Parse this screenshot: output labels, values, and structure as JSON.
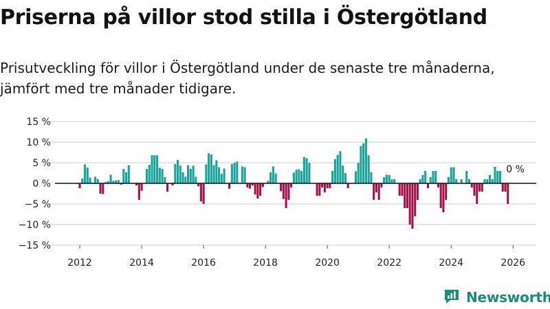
{
  "title": "Priserna på villor stod stilla i Östergötland",
  "subtitle": "Prisutveckling för villor i Östergötland under de senaste tre månaderna, jämfört med tre månader tidigare.",
  "brand": {
    "name": "Newsworthy",
    "icon": "newsworthy-logo-icon"
  },
  "colors": {
    "positive": "#1aa39a",
    "negative": "#a3134a",
    "grid": "#cccccc",
    "brand": "#1d8b7a"
  },
  "chart_data": {
    "type": "bar",
    "title": "Priserna på villor stod stilla i Östergötland",
    "xlabel": "",
    "ylabel": "",
    "ylim": [
      -15,
      15
    ],
    "yticks": [
      15,
      10,
      5,
      0,
      -5,
      -10,
      -15
    ],
    "ytick_labels": [
      "15 %",
      "10 %",
      "5 %",
      "0 %",
      "−5 %",
      "−10 %",
      "−15 %"
    ],
    "xlim": [
      2011.2,
      2026.75
    ],
    "xticks": [
      2012,
      2014,
      2016,
      2018,
      2020,
      2022,
      2024,
      2026
    ],
    "xtick_labels": [
      "2012",
      "2014",
      "2016",
      "2018",
      "2020",
      "2022",
      "2024",
      "2026"
    ],
    "start": {
      "year": 2012,
      "month": 1
    },
    "series": [
      {
        "name": "Prisutveckling",
        "unit": "%",
        "values": [
          -1.2,
          1.2,
          4.6,
          3.8,
          1.4,
          0.2,
          1.6,
          1.0,
          -2.5,
          -2.6,
          0.3,
          0.5,
          2.1,
          0.6,
          0.7,
          0.8,
          -0.3,
          3.5,
          2.7,
          4.4,
          0.0,
          0.0,
          -0.5,
          -4.0,
          -1.8,
          0.0,
          3.5,
          4.5,
          6.8,
          6.8,
          6.8,
          3.8,
          3.5,
          1.5,
          -2.0,
          0.0,
          -0.5,
          4.7,
          5.7,
          4.3,
          2.7,
          1.6,
          4.4,
          3.5,
          4.3,
          1.6,
          -0.7,
          -4.4,
          -5.0,
          4.6,
          7.3,
          7.0,
          4.4,
          5.6,
          3.9,
          2.3,
          3.6,
          0.0,
          -1.3,
          4.7,
          5.0,
          5.3,
          0.0,
          4.1,
          3.9,
          -1.0,
          -1.3,
          -0.5,
          -2.7,
          -3.7,
          -3.0,
          -0.9,
          0.0,
          0.6,
          2.7,
          4.1,
          2.4,
          0.0,
          -1.9,
          -3.8,
          -6.0,
          -4.0,
          -1.0,
          2.6,
          3.3,
          3.4,
          3.0,
          6.4,
          6.1,
          5.0,
          0.0,
          0.0,
          -3.0,
          -3.0,
          -1.0,
          -2.2,
          -1.2,
          -1.2,
          3.0,
          5.9,
          6.9,
          7.8,
          4.3,
          2.5,
          -1.2,
          0.0,
          0.0,
          2.9,
          5.0,
          9.0,
          9.7,
          10.9,
          6.8,
          2.7,
          -4.0,
          -2.2,
          -4.0,
          -1.0,
          1.5,
          2.1,
          2.0,
          1.0,
          1.0,
          0.0,
          -3.0,
          -3.0,
          -6.0,
          -6.0,
          -10.0,
          -11.0,
          -8.0,
          -4.0,
          1.0,
          2.0,
          3.0,
          -1.2,
          1.5,
          3.0,
          3.0,
          -1.0,
          -6.0,
          -7.0,
          -4.0,
          1.5,
          3.9,
          3.9,
          1.0,
          0.0,
          1.0,
          0.0,
          3.0,
          1.0,
          -1.0,
          -3.0,
          -5.0,
          -2.0,
          -2.0,
          1.0,
          1.0,
          2.0,
          1.0,
          4.0,
          3.0,
          3.0,
          -2.0,
          -2.0,
          -5.0,
          0.0
        ]
      }
    ],
    "annotation": {
      "text": "0 %",
      "value": 0,
      "year": 2026,
      "month": 0
    }
  }
}
